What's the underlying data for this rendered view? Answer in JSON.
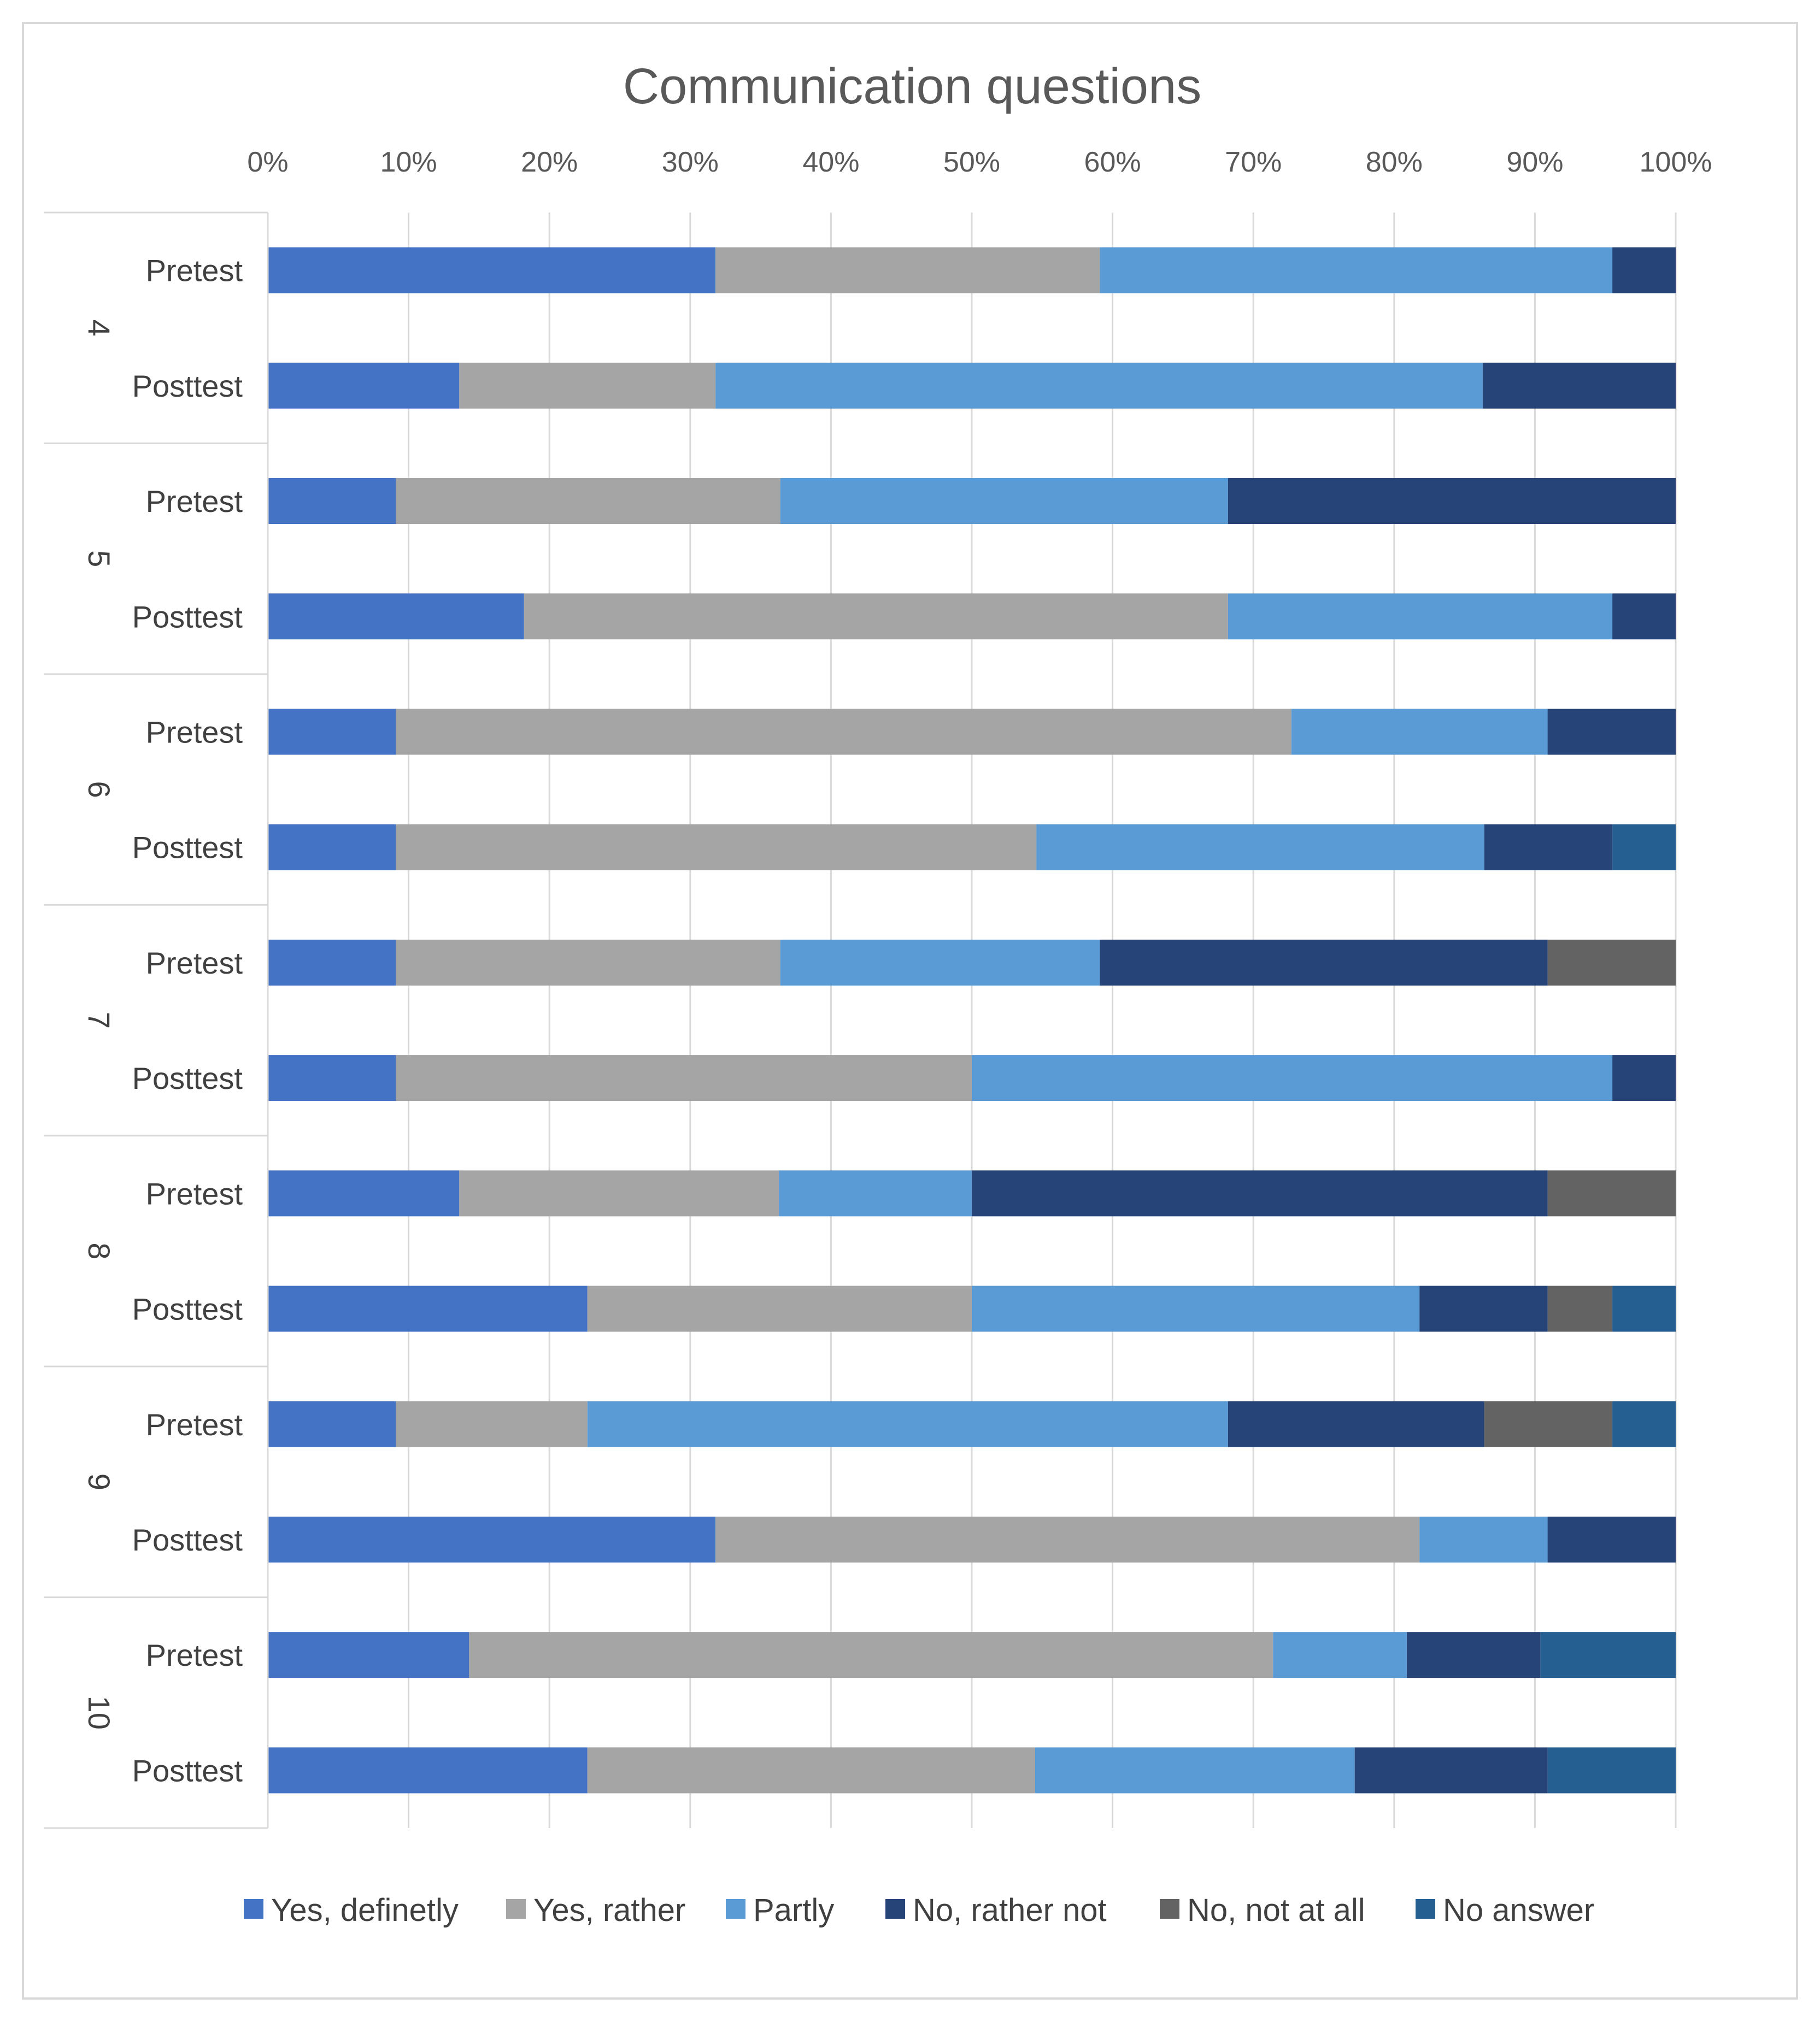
{
  "chart_data": {
    "type": "bar",
    "orientation": "horizontal",
    "stacked": "percent",
    "title": "Communication questions",
    "xlabel": "",
    "ylabel": "",
    "xlim": [
      0,
      100
    ],
    "x_ticks": [
      "0%",
      "10%",
      "20%",
      "30%",
      "40%",
      "50%",
      "60%",
      "70%",
      "80%",
      "90%",
      "100%"
    ],
    "grid": true,
    "legend_position": "bottom",
    "colors": {
      "Yes, definetly": "#4472c4",
      "Yes, rather": "#a5a5a5",
      "Partly": "#5b9bd5",
      "No, rather not": "#264478",
      "No, not at all": "#636363",
      "No answer": "#255e91"
    },
    "series_names": [
      "Yes, definetly",
      "Yes, rather",
      "Partly",
      "No, rather not",
      "No, not at all",
      "No answer"
    ],
    "groups": [
      {
        "name": "4",
        "rows": [
          {
            "label": "Pretest",
            "values": [
              31.8,
              27.3,
              36.4,
              4.5,
              0,
              0
            ]
          },
          {
            "label": "Posttest",
            "values": [
              13.6,
              18.2,
              54.5,
              13.7,
              0,
              0
            ]
          }
        ]
      },
      {
        "name": "5",
        "rows": [
          {
            "label": "Pretest",
            "values": [
              9.1,
              27.3,
              31.8,
              31.8,
              0,
              0
            ]
          },
          {
            "label": "Posttest",
            "values": [
              18.2,
              50.0,
              27.3,
              4.5,
              0,
              0
            ]
          }
        ]
      },
      {
        "name": "6",
        "rows": [
          {
            "label": "Pretest",
            "values": [
              9.1,
              63.6,
              18.2,
              9.1,
              0,
              0
            ]
          },
          {
            "label": "Posttest",
            "values": [
              9.1,
              45.5,
              31.8,
              9.1,
              0,
              4.5
            ]
          }
        ]
      },
      {
        "name": "7",
        "rows": [
          {
            "label": "Pretest",
            "values": [
              9.1,
              27.3,
              22.7,
              31.8,
              9.1,
              0
            ]
          },
          {
            "label": "Posttest",
            "values": [
              9.1,
              40.9,
              45.5,
              4.5,
              0,
              0
            ]
          }
        ]
      },
      {
        "name": "8",
        "rows": [
          {
            "label": "Pretest",
            "values": [
              13.6,
              22.7,
              13.7,
              40.9,
              9.1,
              0
            ]
          },
          {
            "label": "Posttest",
            "values": [
              22.7,
              27.3,
              31.8,
              9.1,
              4.6,
              4.5
            ]
          }
        ]
      },
      {
        "name": "9",
        "rows": [
          {
            "label": "Pretest",
            "values": [
              9.1,
              13.6,
              45.5,
              18.2,
              9.1,
              4.5
            ]
          },
          {
            "label": "Posttest",
            "values": [
              31.8,
              50.0,
              9.1,
              9.1,
              0,
              0
            ]
          }
        ]
      },
      {
        "name": "10",
        "rows": [
          {
            "label": "Pretest",
            "values": [
              14.3,
              57.1,
              9.5,
              9.5,
              0,
              9.6
            ]
          },
          {
            "label": "Posttest",
            "values": [
              22.7,
              31.8,
              22.7,
              13.7,
              0,
              9.1
            ]
          }
        ]
      }
    ]
  }
}
